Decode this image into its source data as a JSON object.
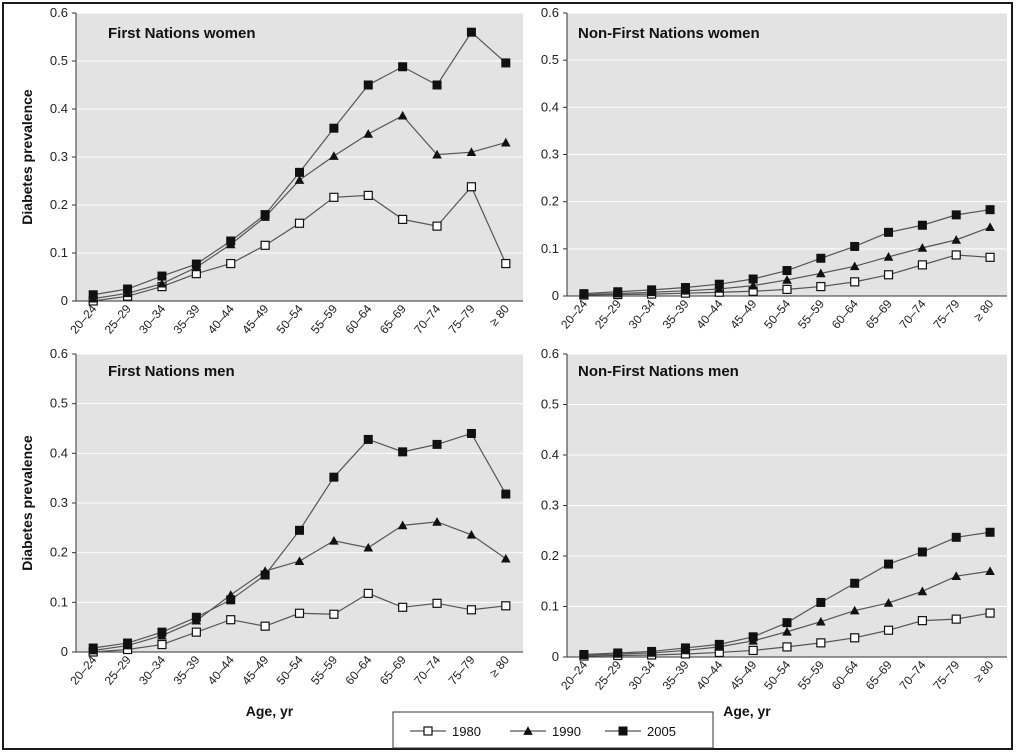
{
  "legend": {
    "entries": [
      {
        "label": "1980",
        "marker": "open-square"
      },
      {
        "label": "1990",
        "marker": "filled-triangle"
      },
      {
        "label": "2005",
        "marker": "filled-square"
      }
    ]
  },
  "colors": {
    "plot_background": "#e3e3e3",
    "gridline": "#ffffff",
    "series_line": "#555555",
    "marker": "#111111"
  },
  "chart_data": [
    {
      "type": "line",
      "title": "First Nations women",
      "xlabel": "",
      "ylabel": "Diabetes prevalence",
      "ylim": [
        0,
        0.6
      ],
      "yticks": [
        "0",
        "0.1",
        "0.2",
        "0.3",
        "0.4",
        "0.5",
        "0.6"
      ],
      "grid": true,
      "categories": [
        "20–24",
        "25–29",
        "30–34",
        "35–39",
        "40–44",
        "45–49",
        "50–54",
        "55–59",
        "60–64",
        "65–69",
        "70–74",
        "75–79",
        "≥ 80"
      ],
      "series": [
        {
          "name": "1980",
          "marker": "open-square",
          "values": [
            0.0,
            0.01,
            0.03,
            0.057,
            0.078,
            0.116,
            0.162,
            0.216,
            0.22,
            0.17,
            0.156,
            0.238,
            0.078
          ]
        },
        {
          "name": "1990",
          "marker": "filled-triangle",
          "values": [
            0.005,
            0.016,
            0.036,
            0.07,
            0.118,
            0.175,
            0.252,
            0.302,
            0.348,
            0.386,
            0.305,
            0.31,
            0.33
          ]
        },
        {
          "name": "2005",
          "marker": "filled-square",
          "values": [
            0.013,
            0.025,
            0.052,
            0.077,
            0.125,
            0.18,
            0.268,
            0.36,
            0.45,
            0.488,
            0.45,
            0.56,
            0.496
          ]
        }
      ]
    },
    {
      "type": "line",
      "title": "Non-First Nations women",
      "xlabel": "",
      "ylabel": "",
      "ylim": [
        0,
        0.6
      ],
      "yticks": [
        "0",
        "0.1",
        "0.2",
        "0.3",
        "0.4",
        "0.5",
        "0.6"
      ],
      "grid": true,
      "categories": [
        "20–24",
        "25–29",
        "30–34",
        "35–39",
        "40–44",
        "45–49",
        "50–54",
        "55–59",
        "60–64",
        "65–69",
        "70–74",
        "75–79",
        "≥ 80"
      ],
      "series": [
        {
          "name": "1980",
          "marker": "open-square",
          "values": [
            0.002,
            0.003,
            0.004,
            0.006,
            0.008,
            0.01,
            0.014,
            0.02,
            0.03,
            0.045,
            0.066,
            0.087,
            0.082
          ]
        },
        {
          "name": "1990",
          "marker": "filled-triangle",
          "values": [
            0.003,
            0.005,
            0.008,
            0.011,
            0.015,
            0.022,
            0.034,
            0.048,
            0.063,
            0.083,
            0.102,
            0.119,
            0.146
          ]
        },
        {
          "name": "2005",
          "marker": "filled-square",
          "values": [
            0.005,
            0.009,
            0.013,
            0.018,
            0.025,
            0.036,
            0.054,
            0.08,
            0.105,
            0.135,
            0.15,
            0.172,
            0.183
          ]
        }
      ]
    },
    {
      "type": "line",
      "title": "First Nations men",
      "xlabel": "Age, yr",
      "ylabel": "Diabetes prevalence",
      "ylim": [
        0,
        0.6
      ],
      "yticks": [
        "0",
        "0.1",
        "0.2",
        "0.3",
        "0.4",
        "0.5",
        "0.6"
      ],
      "grid": true,
      "categories": [
        "20–24",
        "25–29",
        "30–34",
        "35–39",
        "40–44",
        "45–49",
        "50–54",
        "55–59",
        "60–64",
        "65–69",
        "70–74",
        "75–79",
        "≥ 80"
      ],
      "series": [
        {
          "name": "1980",
          "marker": "open-square",
          "values": [
            0.0,
            0.005,
            0.015,
            0.04,
            0.065,
            0.052,
            0.078,
            0.076,
            0.118,
            0.09,
            0.098,
            0.085,
            0.093
          ]
        },
        {
          "name": "1990",
          "marker": "filled-triangle",
          "values": [
            0.003,
            0.013,
            0.033,
            0.063,
            0.115,
            0.163,
            0.183,
            0.224,
            0.21,
            0.255,
            0.262,
            0.236,
            0.188
          ]
        },
        {
          "name": "2005",
          "marker": "filled-square",
          "values": [
            0.008,
            0.018,
            0.04,
            0.07,
            0.105,
            0.155,
            0.245,
            0.352,
            0.428,
            0.403,
            0.418,
            0.44,
            0.318
          ]
        }
      ]
    },
    {
      "type": "line",
      "title": "Non-First Nations men",
      "xlabel": "Age, yr",
      "ylabel": "",
      "ylim": [
        0,
        0.6
      ],
      "yticks": [
        "0",
        "0.1",
        "0.2",
        "0.3",
        "0.4",
        "0.5",
        "0.6"
      ],
      "grid": true,
      "categories": [
        "20–24",
        "25–29",
        "30–34",
        "35–39",
        "40–44",
        "45–49",
        "50–54",
        "55–59",
        "60–64",
        "65–69",
        "70–74",
        "75–79",
        "≥ 80"
      ],
      "series": [
        {
          "name": "1980",
          "marker": "open-square",
          "values": [
            0.002,
            0.003,
            0.004,
            0.006,
            0.009,
            0.013,
            0.02,
            0.028,
            0.038,
            0.053,
            0.072,
            0.075,
            0.087
          ]
        },
        {
          "name": "1990",
          "marker": "filled-triangle",
          "values": [
            0.004,
            0.006,
            0.008,
            0.013,
            0.02,
            0.032,
            0.05,
            0.07,
            0.092,
            0.107,
            0.13,
            0.16,
            0.17
          ]
        },
        {
          "name": "2005",
          "marker": "filled-square",
          "values": [
            0.005,
            0.008,
            0.011,
            0.018,
            0.025,
            0.04,
            0.068,
            0.108,
            0.146,
            0.184,
            0.208,
            0.237,
            0.247
          ]
        }
      ]
    }
  ]
}
